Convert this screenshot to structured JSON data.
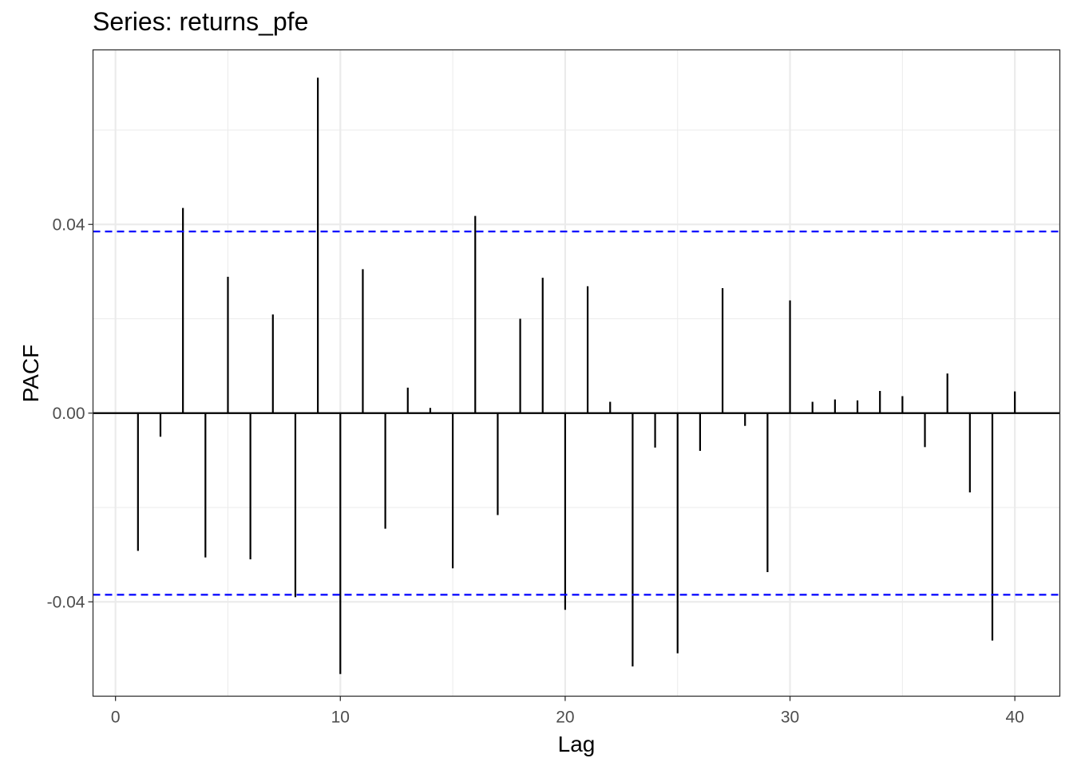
{
  "chart_data": {
    "type": "bar",
    "title": "Series: returns_pfe",
    "xlabel": "Lag",
    "ylabel": "PACF",
    "xlim": [
      -1,
      42
    ],
    "ylim": [
      -0.06,
      0.077
    ],
    "x_ticks": [
      0,
      10,
      20,
      30,
      40
    ],
    "x_tick_labels": [
      "0",
      "10",
      "20",
      "30",
      "40"
    ],
    "y_ticks": [
      -0.04,
      0.0,
      0.04
    ],
    "y_tick_labels": [
      "-0.04",
      "0.00",
      "0.04"
    ],
    "grid": true,
    "confidence_bounds": [
      0.0385,
      -0.0385
    ],
    "confidence_bound_color": "#0000ff",
    "lags": [
      1,
      2,
      3,
      4,
      5,
      6,
      7,
      8,
      9,
      10,
      11,
      12,
      13,
      14,
      15,
      16,
      17,
      18,
      19,
      20,
      21,
      22,
      23,
      24,
      25,
      26,
      27,
      28,
      29,
      30,
      31,
      32,
      33,
      34,
      35,
      36,
      37,
      38,
      39,
      40
    ],
    "values": [
      -0.0292,
      -0.005,
      0.0435,
      -0.0306,
      0.0289,
      -0.031,
      0.0209,
      -0.039,
      0.0711,
      -0.0553,
      0.0305,
      -0.0245,
      0.0054,
      0.0011,
      -0.0329,
      0.0418,
      -0.0216,
      0.02,
      0.0287,
      -0.0417,
      0.0269,
      0.0024,
      -0.0537,
      -0.0073,
      -0.0509,
      -0.008,
      0.0265,
      -0.0027,
      -0.0337,
      0.0239,
      0.0024,
      0.0029,
      0.0027,
      0.0047,
      0.0036,
      -0.0072,
      0.0084,
      -0.0168,
      -0.0482,
      0.0046
    ]
  }
}
